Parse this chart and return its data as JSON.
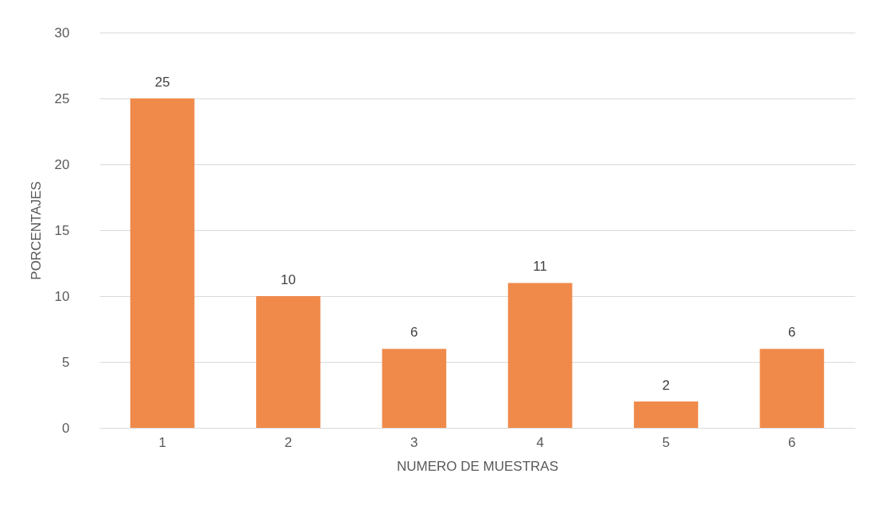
{
  "chart_data": {
    "type": "bar",
    "xlabel": "NUMERO DE MUESTRAS",
    "ylabel": "PORCENTAJES",
    "categories": [
      "1",
      "2",
      "3",
      "4",
      "5",
      "6"
    ],
    "values": [
      25,
      10,
      6,
      11,
      2,
      6
    ],
    "color": "#f08a4b",
    "ylim": [
      0,
      30
    ],
    "yticks": [
      0,
      5,
      10,
      15,
      20,
      25,
      30
    ],
    "grid": "y",
    "data_labels": true
  }
}
